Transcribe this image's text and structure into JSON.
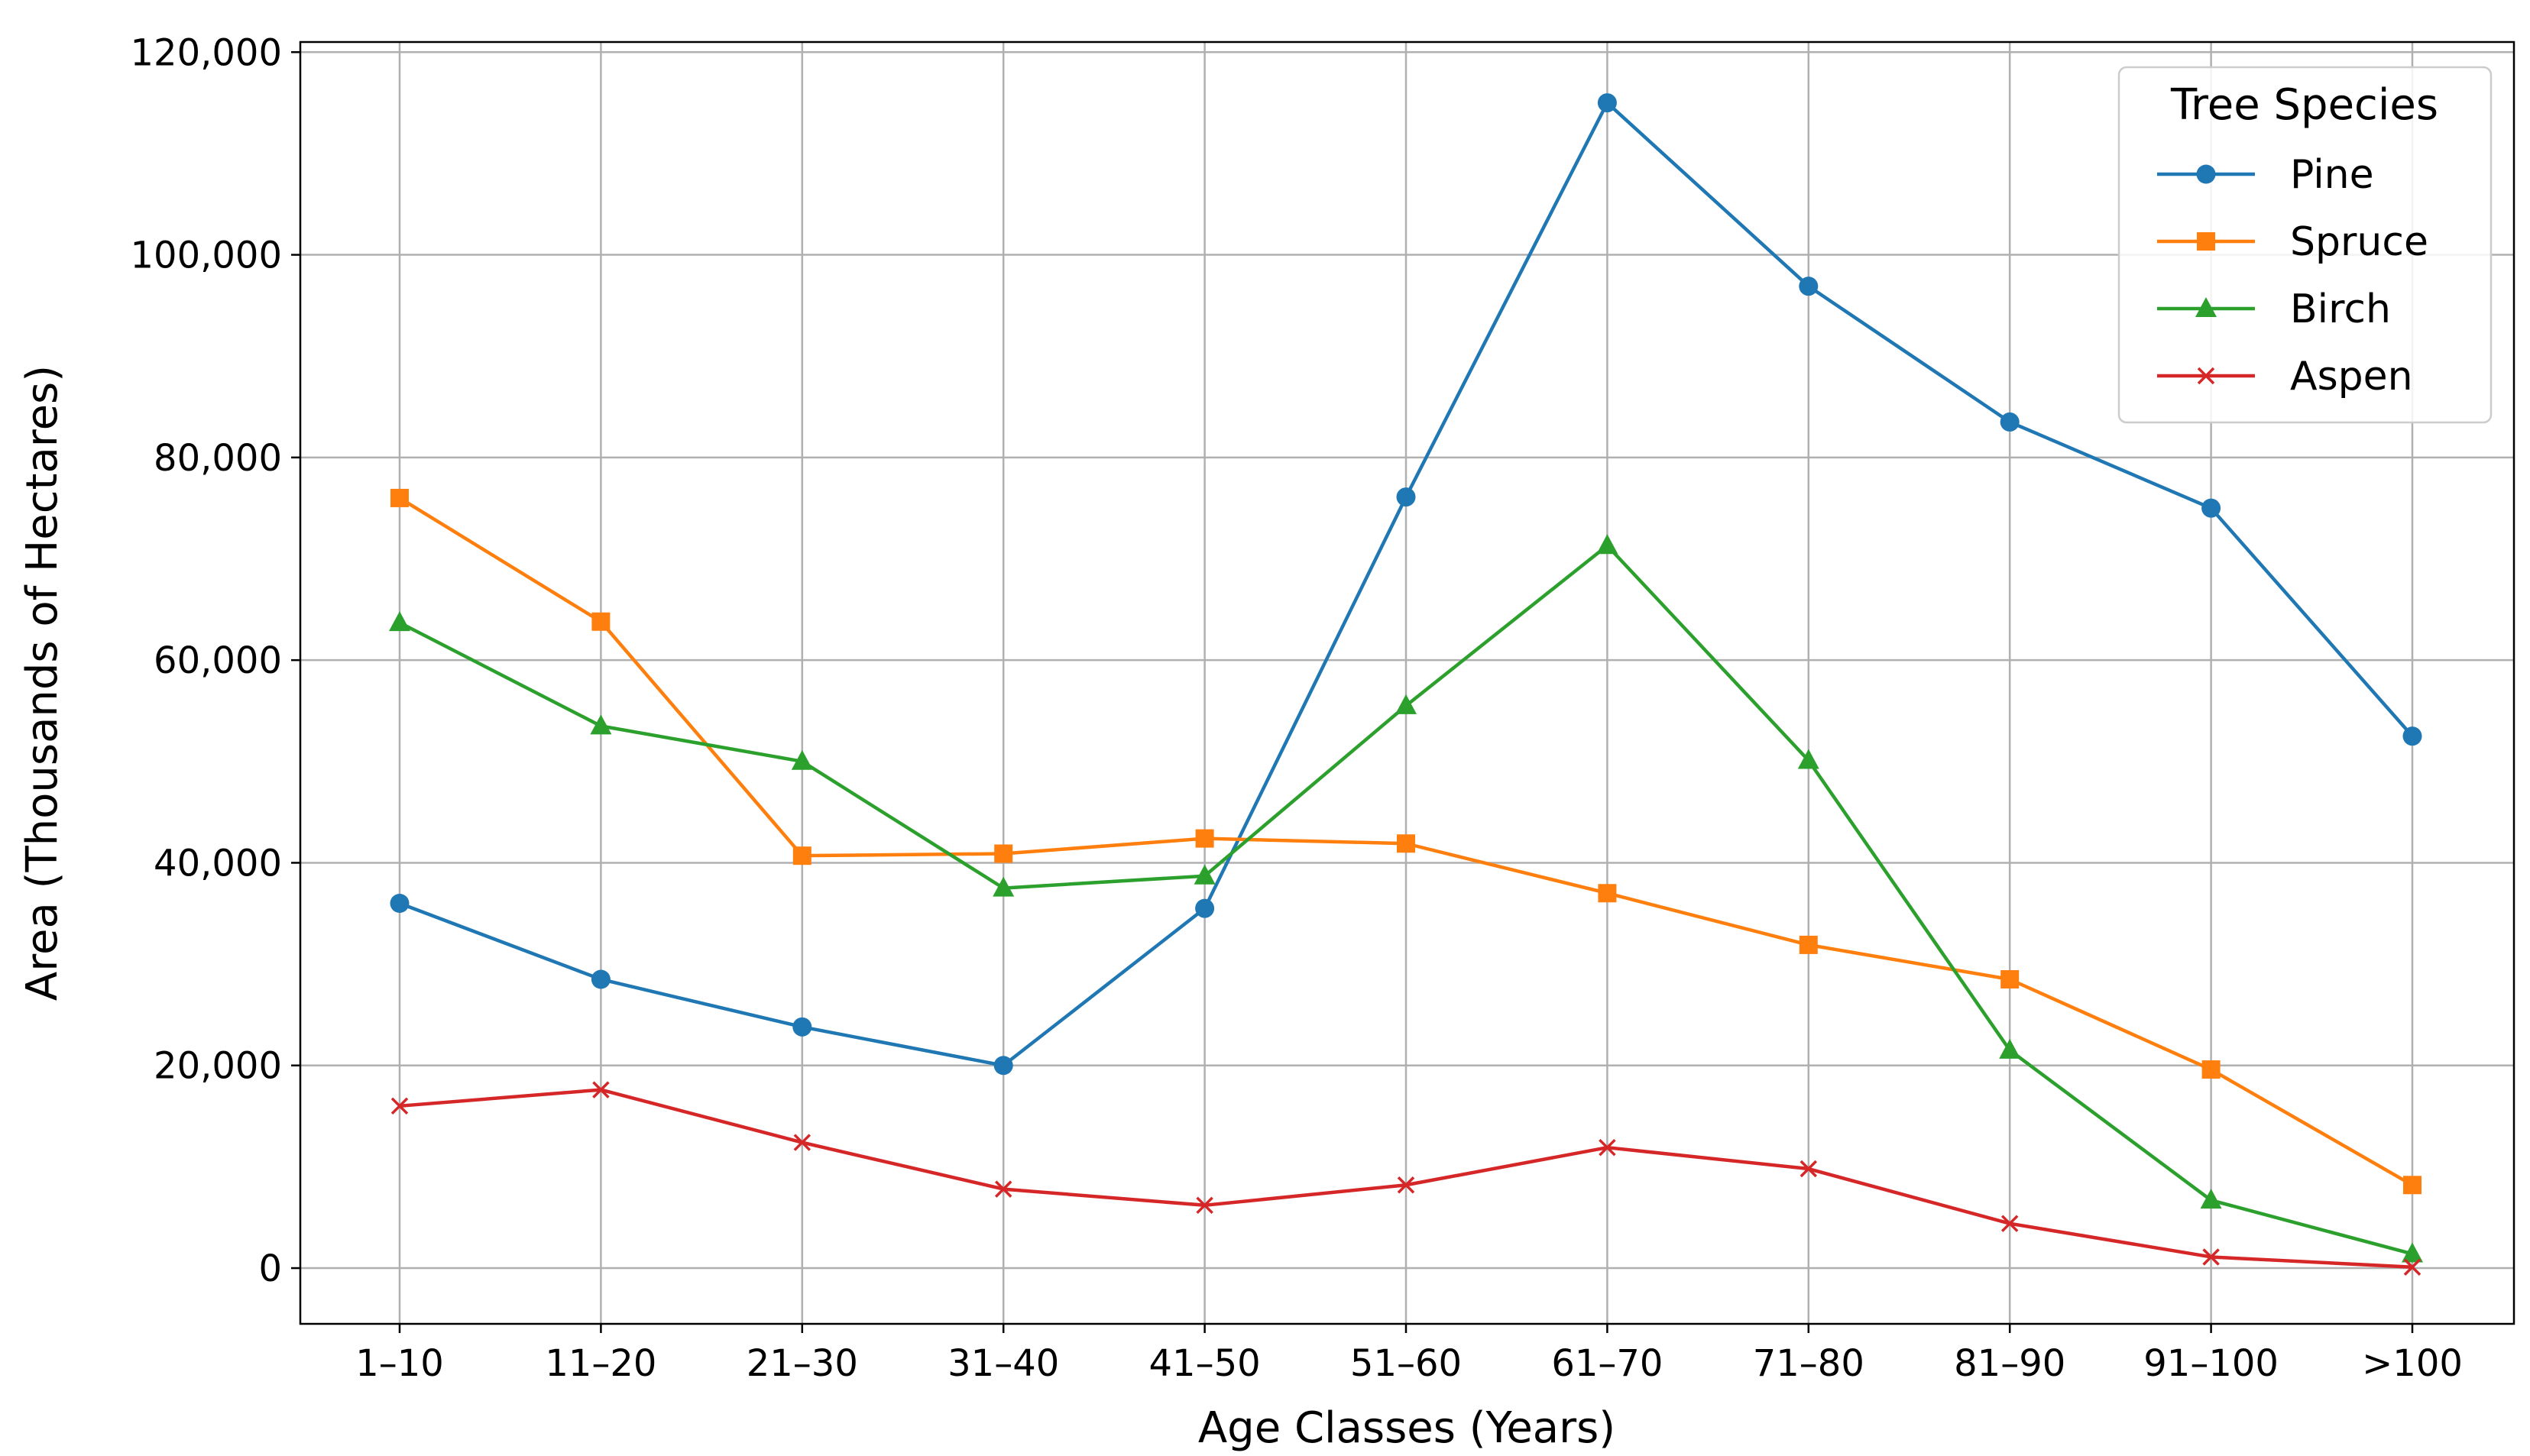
{
  "chart_data": {
    "type": "line",
    "title": "",
    "xlabel": "Age Classes (Years)",
    "ylabel": "Area (Thousands of Hectares)",
    "categories": [
      "1–10",
      "11–20",
      "21–30",
      "31–40",
      "41–50",
      "51–60",
      "61–70",
      "71–80",
      "81–90",
      "91–100",
      ">100"
    ],
    "y_ticks": [
      0,
      20000,
      40000,
      60000,
      80000,
      100000,
      120000
    ],
    "y_tick_labels": [
      "0",
      "20,000",
      "40,000",
      "60,000",
      "80,000",
      "100,000",
      "120,000"
    ],
    "ylim": [
      -5500,
      121000
    ],
    "grid": true,
    "legend": {
      "title": "Tree Species",
      "position": "top-right"
    },
    "series": [
      {
        "name": "Pine",
        "color": "#1f77b4",
        "marker": "circle",
        "values": [
          36000,
          28500,
          23800,
          20000,
          35500,
          76100,
          115000,
          96900,
          83500,
          75000,
          52500
        ]
      },
      {
        "name": "Spruce",
        "color": "#ff7f0e",
        "marker": "square",
        "values": [
          76000,
          63800,
          40700,
          40900,
          42400,
          41900,
          37000,
          31900,
          28500,
          19600,
          8200
        ]
      },
      {
        "name": "Birch",
        "color": "#2ca02c",
        "marker": "triangle",
        "values": [
          63700,
          53500,
          50000,
          37500,
          38700,
          55500,
          71300,
          50100,
          21500,
          6700,
          1400
        ]
      },
      {
        "name": "Aspen",
        "color": "#d62728",
        "marker": "x",
        "values": [
          16000,
          17600,
          12400,
          7800,
          6200,
          8200,
          11900,
          9800,
          4400,
          1100,
          100
        ]
      }
    ]
  }
}
